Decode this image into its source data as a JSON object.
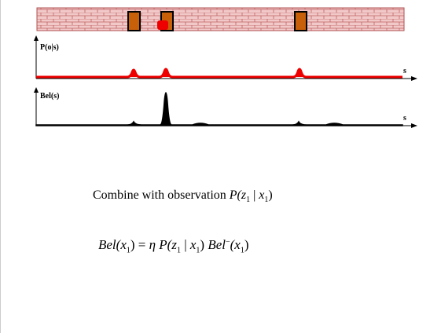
{
  "plot_top": {
    "y_label": "P(o|s)",
    "x_label": "s"
  },
  "plot_bottom": {
    "y_label": "Bel(s)",
    "x_label": "s"
  },
  "caption": {
    "text": "Combine with observation",
    "formula": [
      "P(z",
      "1",
      " | ",
      "x",
      "1",
      ")"
    ]
  },
  "equation": [
    "Bel(x",
    "1",
    ") = ",
    "η",
    " P(z",
    "1",
    " | ",
    "x",
    "1",
    ") ",
    "Bel",
    "−",
    "(x",
    "1",
    ")"
  ]
}
